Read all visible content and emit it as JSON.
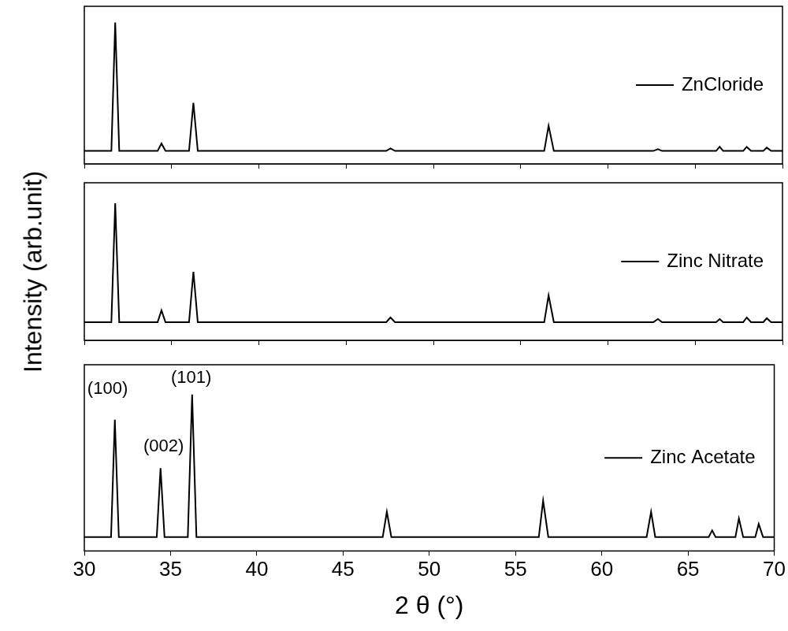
{
  "chart_data": [
    {
      "type": "line",
      "x": [
        30,
        31.55,
        31.77,
        32.0,
        34.2,
        34.42,
        34.65,
        36.0,
        36.25,
        36.5,
        47.3,
        47.54,
        47.8,
        56.35,
        56.6,
        56.9,
        62.6,
        62.86,
        63.1,
        66.2,
        66.4,
        66.6,
        67.75,
        67.95,
        68.2,
        68.9,
        69.1,
        69.35,
        70
      ],
      "series": [
        {
          "name": "ZnCloride",
          "color": "#000000",
          "values": [
            8.2,
            8.2,
            89.7,
            8.2,
            8.2,
            12.9,
            8.2,
            8.2,
            38.7,
            8.2,
            8.2,
            9.8,
            8.2,
            8.2,
            24.2,
            8.2,
            8.2,
            9.3,
            8.2,
            8.2,
            10.8,
            8.2,
            8.2,
            10.8,
            8.2,
            8.2,
            10.3,
            8.2,
            8.2
          ]
        }
      ],
      "xlim": [
        30,
        70
      ],
      "xticks": [
        30,
        35,
        40,
        45,
        50,
        55,
        60,
        65,
        70
      ],
      "ylim": [
        0,
        100
      ],
      "grid": false,
      "legend": "right",
      "tick_labels": false
    },
    {
      "type": "line",
      "x": [
        30,
        31.55,
        31.77,
        32.0,
        34.2,
        34.42,
        34.65,
        36.0,
        36.25,
        36.5,
        47.3,
        47.54,
        47.8,
        56.35,
        56.6,
        56.9,
        62.6,
        62.86,
        63.1,
        66.2,
        66.4,
        66.6,
        67.75,
        67.95,
        68.2,
        68.9,
        69.1,
        69.35,
        70
      ],
      "series": [
        {
          "name": "Zinc Nitrate",
          "color": "#000000",
          "values": [
            11.5,
            11.5,
            87,
            11.5,
            11.5,
            19,
            11.5,
            11.5,
            43.5,
            11.5,
            11.5,
            14.5,
            11.5,
            11.5,
            28.5,
            11.5,
            11.5,
            13.5,
            11.5,
            11.5,
            13.5,
            11.5,
            11.5,
            14.5,
            11.5,
            11.5,
            14,
            11.5,
            11.5
          ]
        }
      ],
      "xlim": [
        30,
        70
      ],
      "xticks": [
        30,
        35,
        40,
        45,
        50,
        55,
        60,
        65,
        70
      ],
      "ylim": [
        0,
        100
      ],
      "grid": false,
      "legend": "right",
      "tick_labels": false,
      "y_label": "Intensity (arb.unit)"
    },
    {
      "type": "line",
      "x": [
        30,
        31.55,
        31.77,
        32.0,
        34.2,
        34.42,
        34.65,
        36.0,
        36.25,
        36.5,
        47.3,
        47.54,
        47.8,
        56.35,
        56.6,
        56.9,
        62.6,
        62.86,
        63.1,
        66.2,
        66.4,
        66.6,
        67.75,
        67.95,
        68.2,
        68.9,
        69.1,
        69.35,
        70
      ],
      "series": [
        {
          "name": "Zinc Acetate",
          "color": "#000000",
          "values": [
            7.5,
            7.5,
            70.5,
            7.5,
            7.5,
            44.5,
            7.5,
            7.5,
            84,
            7.5,
            7.5,
            21,
            7.5,
            7.5,
            27,
            7.5,
            7.5,
            21,
            7.5,
            7.5,
            11,
            7.5,
            7.5,
            17.5,
            7.5,
            7.5,
            14.5,
            7.5,
            7.5
          ]
        }
      ],
      "xlim": [
        30,
        70
      ],
      "xticks": [
        30,
        35,
        40,
        45,
        50,
        55,
        60,
        65,
        70
      ],
      "ylim": [
        0,
        100
      ],
      "grid": false,
      "legend": "right",
      "tick_labels": "x",
      "x_label": "2 θ (°)",
      "annotations": [
        {
          "text": "(100)",
          "x": 31.35,
          "y": 87
        },
        {
          "text": "(002)",
          "x": 34.6,
          "y": 56
        },
        {
          "text": "(101)",
          "x": 36.2,
          "y": 93
        }
      ]
    }
  ]
}
